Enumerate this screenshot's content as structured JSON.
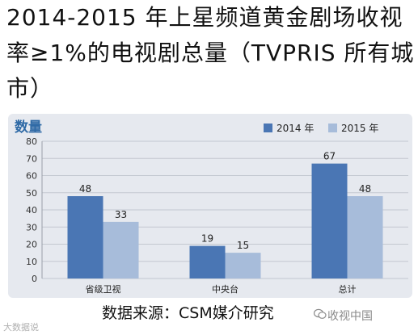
{
  "title": "2014-2015 年上星频道黄金剧场收视率≥1%的电视剧总量（TVPRIS 所有城市）",
  "source": "数据来源：CSM媒介研究",
  "watermark_right": "收视中国",
  "watermark_left": "大数据说",
  "chart_data": {
    "type": "bar",
    "ylabel": "数量",
    "ylim": [
      0,
      80
    ],
    "yticks": [
      0,
      10,
      20,
      30,
      40,
      50,
      60,
      70,
      80
    ],
    "grid": true,
    "legend_position": "top-right",
    "categories": [
      "省级卫视",
      "中央台",
      "总计"
    ],
    "series": [
      {
        "name": "2014 年",
        "values": [
          48,
          19,
          67
        ],
        "color": "#4a76b4"
      },
      {
        "name": "2015 年",
        "values": [
          33,
          15,
          48
        ],
        "color": "#a7bcda"
      }
    ]
  }
}
